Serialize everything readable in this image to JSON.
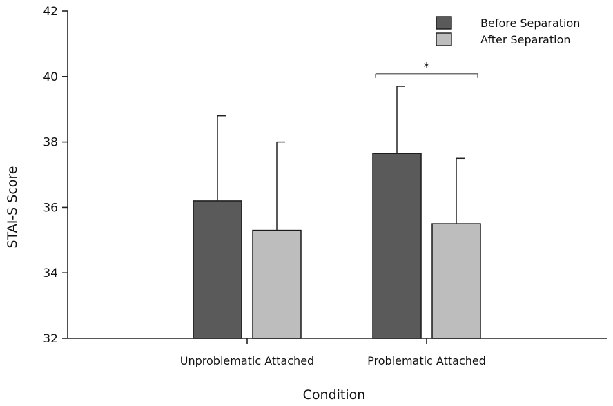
{
  "chart_data": {
    "type": "bar",
    "title": "",
    "xlabel": "Condition",
    "ylabel": "STAI-S Score",
    "ylim": [
      32,
      42
    ],
    "yticks": [
      32,
      34,
      36,
      38,
      40,
      42
    ],
    "categories": [
      "Unproblematic Attached",
      "Problematic Attached"
    ],
    "series": [
      {
        "name": "Before Separation",
        "color": "#5a5a5a",
        "values": [
          36.2,
          37.65
        ],
        "error_upper": [
          38.8,
          39.7
        ]
      },
      {
        "name": "After Separation",
        "color": "#bdbdbd",
        "values": [
          35.3,
          35.5
        ],
        "error_upper": [
          38.0,
          37.5
        ]
      }
    ],
    "legend_position": "top-right",
    "grid": false,
    "annotations": [
      {
        "text": "*",
        "category": "Problematic Attached",
        "y": 40.0
      }
    ]
  }
}
